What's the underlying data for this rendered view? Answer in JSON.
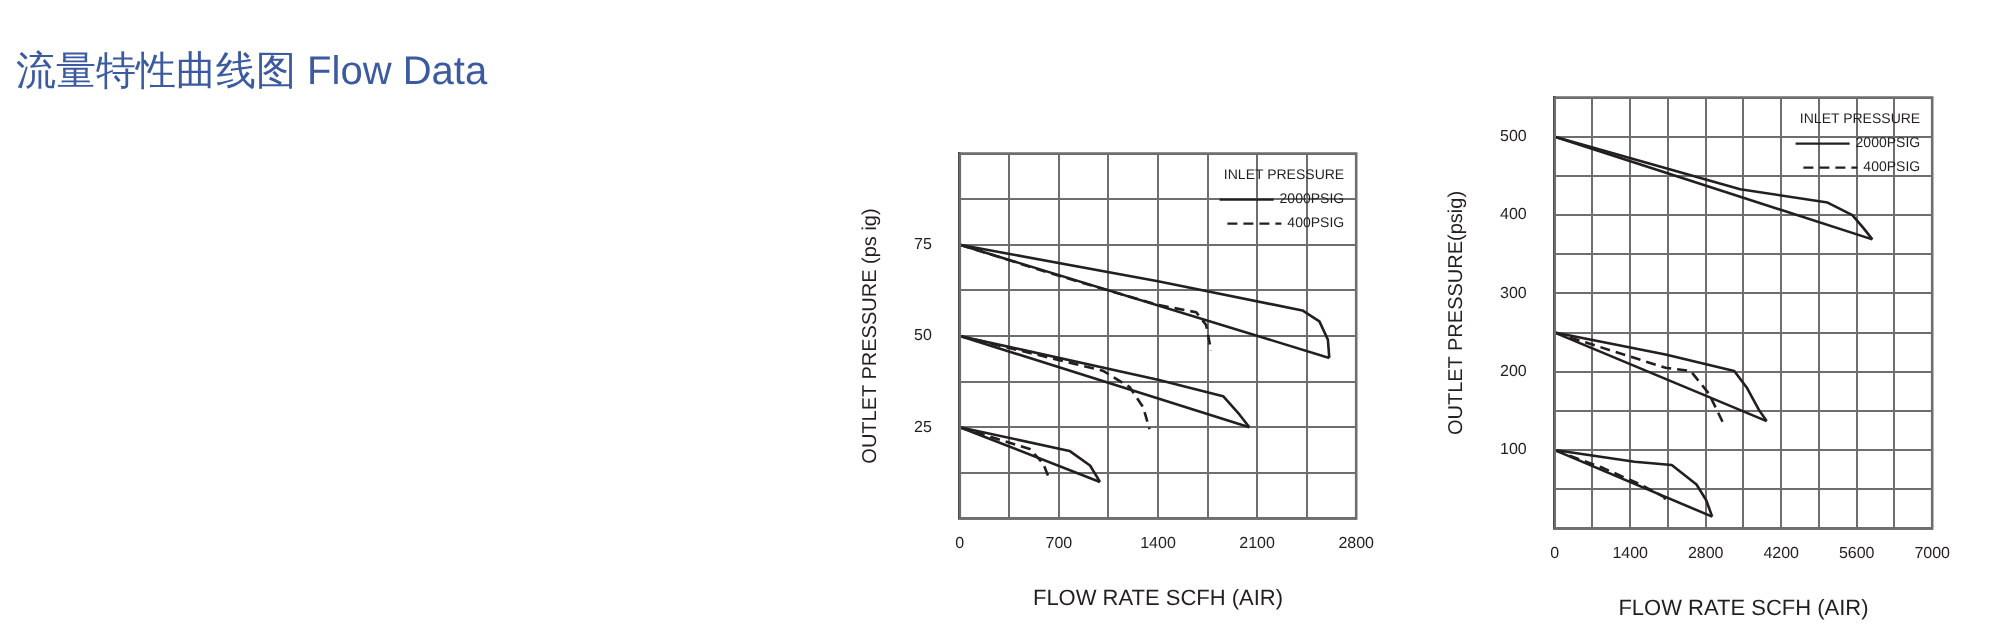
{
  "chart_data": [
    {
      "type": "other",
      "title": "流量特性曲线图 Flow Data"
    },
    {
      "type": "line",
      "xlabel": "FLOW RATE SCFH (AIR)",
      "ylabel": "OUTLET PRESSURE (ps ig)",
      "legend_title": "INLET PRESSURE",
      "legend": "top right",
      "grid": true,
      "marker": "none",
      "xlim": [
        0,
        2800
      ],
      "xticks": [
        0,
        {
          "value": 350,
          "label": null
        },
        700,
        {
          "value": 1050,
          "label": null
        },
        1400,
        {
          "value": 1750,
          "label": null
        },
        2100,
        {
          "value": 2450,
          "label": null
        },
        2800
      ],
      "ylim": [
        0,
        100
      ],
      "yticks": [
        {
          "value": 0,
          "label": null
        },
        {
          "value": 12.5,
          "label": null
        },
        25,
        {
          "value": 37.5,
          "label": null
        },
        50,
        {
          "value": 62.5,
          "label": null
        },
        75,
        {
          "value": 87.5,
          "label": null
        },
        {
          "value": 100,
          "label": null
        }
      ],
      "series": [
        {
          "name": "2000PSIG",
          "type": "line",
          "line_style": "solid",
          "color": "#231f20",
          "x": [
            0,
            1400,
            2420,
            2540,
            2600,
            2610
          ],
          "values": [
            75,
            65,
            57,
            54,
            49,
            44
          ]
        },
        {
          "name": "400PSIG",
          "type": "line",
          "line_style": "dashed",
          "color": "#231f20",
          "x": [
            0,
            700,
            1400,
            1670,
            1740,
            1775
          ],
          "values": [
            75,
            66.5,
            58.5,
            56.5,
            53,
            46
          ]
        },
        {
          "type": "line",
          "line_style": "solid",
          "color": "#231f20",
          "x": [
            0,
            2610
          ],
          "values": [
            75,
            44
          ]
        },
        {
          "type": "line",
          "line_style": "solid",
          "color": "#231f20",
          "x": [
            0,
            1400,
            1860,
            1975,
            2045
          ],
          "values": [
            50,
            38,
            33.5,
            28.5,
            25
          ]
        },
        {
          "type": "line",
          "line_style": "solid",
          "color": "#231f20",
          "x": [
            0,
            2045
          ],
          "values": [
            50,
            25
          ]
        },
        {
          "type": "line",
          "line_style": "dashed",
          "color": "#231f20",
          "x": [
            0,
            1010,
            1200,
            1295,
            1340
          ],
          "values": [
            50,
            40.5,
            36,
            30.5,
            24.5
          ]
        },
        {
          "type": "line",
          "line_style": "solid",
          "color": "#231f20",
          "x": [
            0,
            775,
            920,
            990
          ],
          "values": [
            25,
            18.5,
            14.5,
            10
          ]
        },
        {
          "type": "line",
          "line_style": "solid",
          "color": "#231f20",
          "x": [
            0,
            990
          ],
          "values": [
            25,
            10
          ]
        },
        {
          "type": "line",
          "line_style": "dashed",
          "color": "#231f20",
          "x": [
            0,
            495,
            590,
            635
          ],
          "values": [
            25,
            19,
            15,
            10.5
          ]
        }
      ]
    },
    {
      "type": "line",
      "xlabel": "FLOW RATE SCFH (AIR)",
      "ylabel": "OUTLET PRESSURE(psig)",
      "legend_title": "INLET PRESSURE",
      "legend": "top right",
      "grid": true,
      "marker": "none",
      "xlim": [
        0,
        7000
      ],
      "xticks": [
        0,
        {
          "value": 700,
          "label": null
        },
        1400,
        {
          "value": 2100,
          "label": null
        },
        2800,
        {
          "value": 3500,
          "label": null
        },
        4200,
        {
          "value": 4900,
          "label": null
        },
        5600,
        {
          "value": 6300,
          "label": null
        },
        7000
      ],
      "ylim": [
        0,
        550
      ],
      "yticks": [
        {
          "value": 0,
          "label": null
        },
        {
          "value": 50,
          "label": null
        },
        100,
        {
          "value": 150,
          "label": null
        },
        200,
        {
          "value": 250,
          "label": null
        },
        300,
        {
          "value": 350,
          "label": null
        },
        400,
        {
          "value": 450,
          "label": null
        },
        500,
        {
          "value": 550,
          "label": null
        }
      ],
      "series": [
        {
          "name": "2000PSIG",
          "type": "line",
          "line_style": "solid",
          "color": "#231f20",
          "x": [
            0,
            3440,
            5060,
            5520,
            5730,
            5890
          ],
          "values": [
            500,
            433,
            416,
            400,
            383,
            369
          ]
        },
        {
          "name": "400PSIG",
          "type": "line",
          "line_style": "dashed",
          "color": "#231f20",
          "x": [
            0,
            2055,
            2520,
            2860,
            3120
          ],
          "values": [
            250,
            205,
            201,
            172,
            135
          ]
        },
        {
          "type": "line",
          "line_style": "solid",
          "color": "#231f20",
          "x": [
            0,
            5890
          ],
          "values": [
            500,
            369
          ]
        },
        {
          "type": "line",
          "line_style": "solid",
          "color": "#231f20",
          "x": [
            0,
            2055,
            3330,
            3560,
            3790,
            3930
          ],
          "values": [
            250,
            222,
            201,
            180,
            151,
            137
          ]
        },
        {
          "type": "line",
          "line_style": "solid",
          "color": "#231f20",
          "x": [
            0,
            3930
          ],
          "values": [
            250,
            137
          ]
        },
        {
          "type": "line",
          "line_style": "solid",
          "color": "#231f20",
          "x": [
            0,
            1480,
            2170,
            2630,
            2810,
            2920
          ],
          "values": [
            100,
            85,
            81,
            56,
            36,
            15
          ]
        },
        {
          "type": "line",
          "line_style": "solid",
          "color": "#231f20",
          "x": [
            0,
            2920
          ],
          "values": [
            100,
            15
          ]
        },
        {
          "type": "line",
          "line_style": "dashed",
          "color": "#231f20",
          "x": [
            0,
            900,
            1590,
            2030,
            2080
          ],
          "values": [
            100,
            77,
            56,
            40,
            31
          ]
        }
      ]
    }
  ]
}
